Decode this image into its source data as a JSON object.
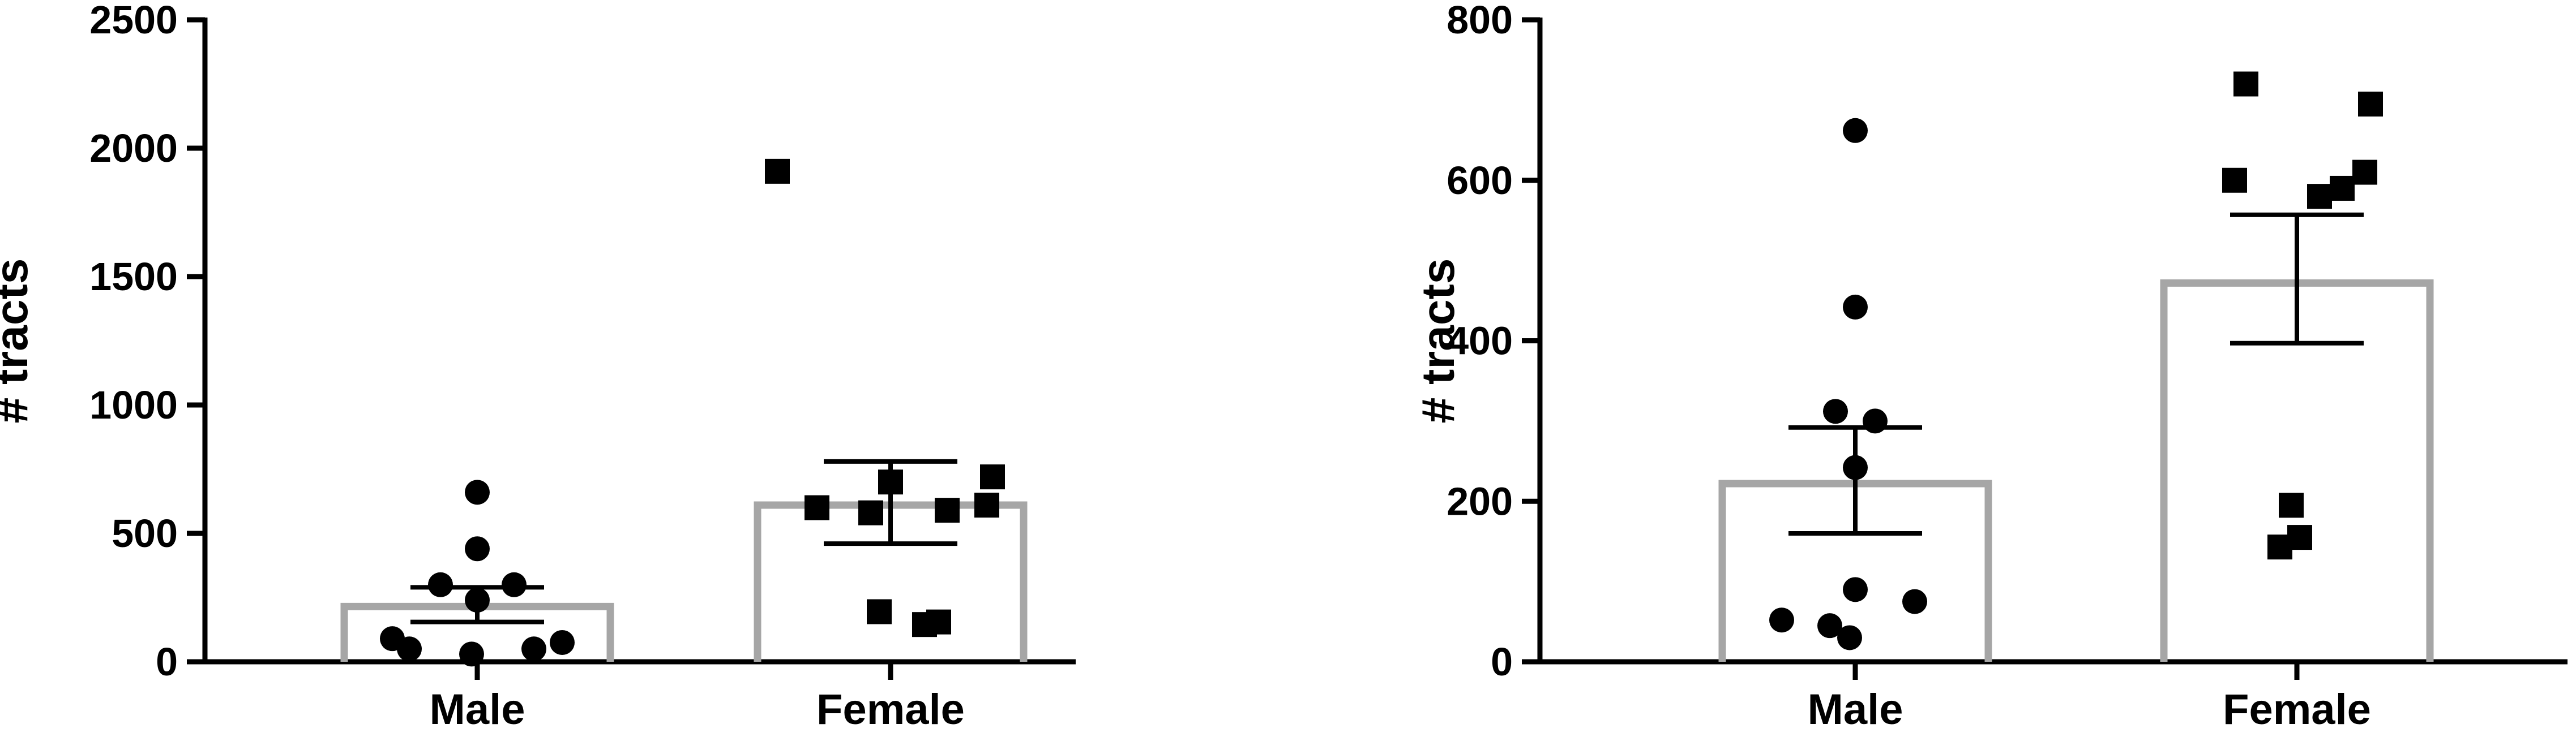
{
  "chart_data": [
    {
      "type": "bar",
      "categories": [
        "Male",
        "Female"
      ],
      "ylabel": "# tracts",
      "xlabel": "",
      "ylim": [
        0,
        2500
      ],
      "yticks": [
        0,
        500,
        1000,
        1500,
        2000,
        2500
      ],
      "ytick_labels": [
        "0",
        "500",
        "1000",
        "1500",
        "2000",
        "2500"
      ],
      "bar_color": "#a6a6a6",
      "marker_color": "#000000",
      "grid": false,
      "series": [
        {
          "category": "Male",
          "marker": "circle",
          "mean": 215,
          "sem_low": 155,
          "sem_high": 290,
          "points": [
            660,
            440,
            300,
            300,
            240,
            90,
            75,
            50,
            50,
            30
          ]
        },
        {
          "category": "Female",
          "marker": "square",
          "mean": 610,
          "sem_low": 460,
          "sem_high": 780,
          "points": [
            1910,
            720,
            700,
            610,
            600,
            590,
            580,
            195,
            155,
            145
          ]
        }
      ]
    },
    {
      "type": "bar",
      "categories": [
        "Male",
        "Female"
      ],
      "ylabel": "# tracts",
      "xlabel": "",
      "ylim": [
        0,
        800
      ],
      "yticks": [
        0,
        200,
        400,
        600,
        800
      ],
      "ytick_labels": [
        "0",
        "200",
        "400",
        "600",
        "800"
      ],
      "bar_color": "#a6a6a6",
      "marker_color": "#000000",
      "grid": false,
      "series": [
        {
          "category": "Male",
          "marker": "circle",
          "mean": 222,
          "sem_low": 160,
          "sem_high": 292,
          "points": [
            662,
            442,
            312,
            300,
            242,
            90,
            75,
            52,
            45,
            30
          ]
        },
        {
          "category": "Female",
          "marker": "square",
          "mean": 472,
          "sem_low": 397,
          "sem_high": 557,
          "points": [
            720,
            695,
            610,
            600,
            590,
            580,
            195,
            155,
            143
          ]
        }
      ]
    }
  ]
}
